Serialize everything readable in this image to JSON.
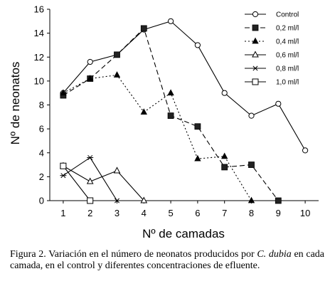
{
  "chart_data": {
    "type": "line",
    "xlabel": "Nº de camadas",
    "ylabel": "Nº de neonatos",
    "xlim": [
      0.5,
      10.5
    ],
    "ylim": [
      0,
      16
    ],
    "xticks": [
      "1",
      "2",
      "3",
      "4",
      "5",
      "6",
      "7",
      "8",
      "9",
      "10"
    ],
    "yticks": [
      "0",
      "2",
      "4",
      "6",
      "8",
      "10",
      "12",
      "14",
      "16"
    ],
    "grid": false,
    "legend_position": "top-right",
    "series": [
      {
        "name": "Control",
        "marker": "circle-open",
        "dash": "solid",
        "x": [
          1,
          2,
          3,
          4,
          5,
          6,
          7,
          8,
          9,
          10
        ],
        "values": [
          9,
          11.6,
          12.2,
          14.3,
          15,
          13,
          9,
          7.1,
          8.1,
          4.2
        ]
      },
      {
        "name": "0,2 ml/l",
        "marker": "square-filled",
        "dash": "longdash",
        "x": [
          1,
          2,
          3,
          4,
          5,
          6,
          7,
          8,
          9
        ],
        "values": [
          8.8,
          10.2,
          12.2,
          14.4,
          7.1,
          6.2,
          2.8,
          3,
          0
        ]
      },
      {
        "name": "0,4 ml/l",
        "marker": "triangle-filled",
        "dash": "dotted",
        "x": [
          1,
          2,
          3,
          4,
          5,
          6,
          7,
          8
        ],
        "values": [
          9,
          10.2,
          10.5,
          7.4,
          9,
          3.5,
          3.7,
          0
        ]
      },
      {
        "name": "0,6 ml/l",
        "marker": "triangle-open",
        "dash": "solid",
        "x": [
          1,
          2,
          3,
          4
        ],
        "values": [
          2.9,
          1.6,
          2.5,
          0
        ]
      },
      {
        "name": "0,8 ml/l",
        "marker": "asterisk",
        "dash": "solid",
        "x": [
          1,
          2,
          3
        ],
        "values": [
          2.1,
          3.6,
          0
        ]
      },
      {
        "name": "1,0 ml/l",
        "marker": "square-open",
        "dash": "solid",
        "x": [
          1,
          2
        ],
        "values": [
          2.9,
          0
        ]
      }
    ]
  },
  "caption": {
    "figure_label": "Figura 2.",
    "text_before_species": " Variación en el número de neonatos producidos por ",
    "species": "C. dubia",
    "text_after_species": " en cada camada, en el control y diferentes concentraciones de efluente."
  }
}
